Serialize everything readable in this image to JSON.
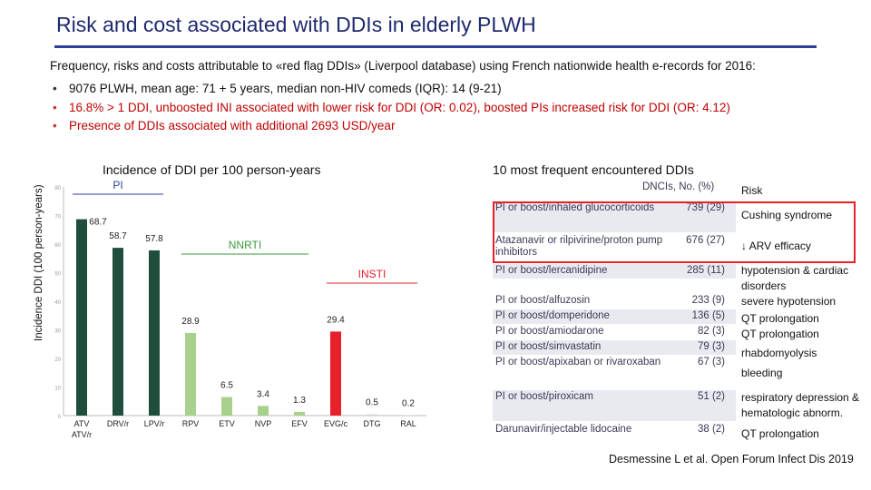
{
  "slide": {
    "title": "Risk and cost associated with DDIs in elderly PLWH",
    "subtitle": "Frequency, risks and costs attributable to «red flag DDIs» (Liverpool database) using French nationwide health e-records for 2016:",
    "bullets": [
      "9076 PLWH, mean age: 71 + 5 years, median non-HIV comeds (IQR): 14 (9-21)",
      "16.8% > 1 DDI, unboosted INI associated with lower risk for DDI (OR: 0.02), boosted PIs increased risk for DDI (OR: 4.12)",
      "Presence of DDIs associated with additional 2693 USD/year"
    ],
    "bullet_char": "•",
    "citation": "Desmessine L et al. Open Forum Infect Dis 2019"
  },
  "chart_data": {
    "type": "bar",
    "title": "Incidence of DDI per 100 person-years",
    "ylabel": "Incidence DDI (100 person-years)",
    "xlabel": "",
    "ylim": [
      0,
      80
    ],
    "yticks": [
      0,
      10,
      20,
      30,
      40,
      50,
      60,
      70,
      80
    ],
    "categories": [
      "ATV",
      "DRV/r",
      "LPV/r",
      "RPV",
      "ETV",
      "NVP",
      "EFV",
      "EVG/c",
      "DTG",
      "RAL"
    ],
    "category_sublabels": [
      "ATV/r",
      "",
      "",
      "",
      "",
      "",
      "",
      "",
      "",
      ""
    ],
    "values": [
      68.7,
      58.7,
      57.8,
      28.9,
      6.5,
      3.4,
      1.3,
      29.4,
      0.5,
      0.2
    ],
    "value_labels": [
      "68.7",
      "58.7",
      "57.8",
      "28.9",
      "6.5",
      "3.4",
      "1.3",
      "29.4",
      "0.5",
      "0.2"
    ],
    "groups": [
      {
        "name": "PI",
        "start": 0,
        "end": 2,
        "color": "#2e3f9a"
      },
      {
        "name": "NNRTI",
        "start": 3,
        "end": 6,
        "color": "#3a9a3a"
      },
      {
        "name": "INSTI",
        "start": 7,
        "end": 9,
        "color": "#e8202a"
      }
    ],
    "bar_colors": [
      "#1f4e3d",
      "#1f4e3d",
      "#1f4e3d",
      "#a9d18e",
      "#a9d18e",
      "#a9d18e",
      "#a9d18e",
      "#e8202a",
      "#d9d9d9",
      "#d9d9d9"
    ],
    "grid": false
  },
  "table": {
    "title": "10 most frequent encountered DDIs",
    "header_cols": "DNCIs, No. (%)",
    "risk_header": "Risk",
    "rows": [
      {
        "drug": "PI or boost/inhaled glucocorticoids",
        "count": "739 (29)",
        "risk": "Cushing syndrome"
      },
      {
        "drug": "Atazanavir or rilpivirine/proton pump inhibitors",
        "count": "676 (27)",
        "risk": "↓ ARV efficacy"
      },
      {
        "drug": "PI or boost/lercanidipine",
        "count": "285 (11)",
        "risk": "hypotension & cardiac disorders"
      },
      {
        "drug": "PI or boost/alfuzosin",
        "count": "233 (9)",
        "risk": "severe hypotension"
      },
      {
        "drug": "PI or boost/domperidone",
        "count": "136 (5)",
        "risk": "QT prolongation"
      },
      {
        "drug": "PI or boost/amiodarone",
        "count": "82 (3)",
        "risk": "QT prolongation"
      },
      {
        "drug": "PI or boost/simvastatin",
        "count": "79 (3)",
        "risk": "rhabdomyolysis"
      },
      {
        "drug": "PI or boost/apixaban or rivaroxaban",
        "count": "67 (3)",
        "risk": "bleeding"
      },
      {
        "drug": "PI or boost/piroxicam",
        "count": "51 (2)",
        "risk": "respiratory depression & hematologic abnorm."
      },
      {
        "drug": "Darunavir/injectable lidocaine",
        "count": "38 (2)",
        "risk": "QT prolongation"
      }
    ]
  },
  "colors": {
    "title": "#1f2a6e",
    "red_highlight": "#e8202a"
  }
}
